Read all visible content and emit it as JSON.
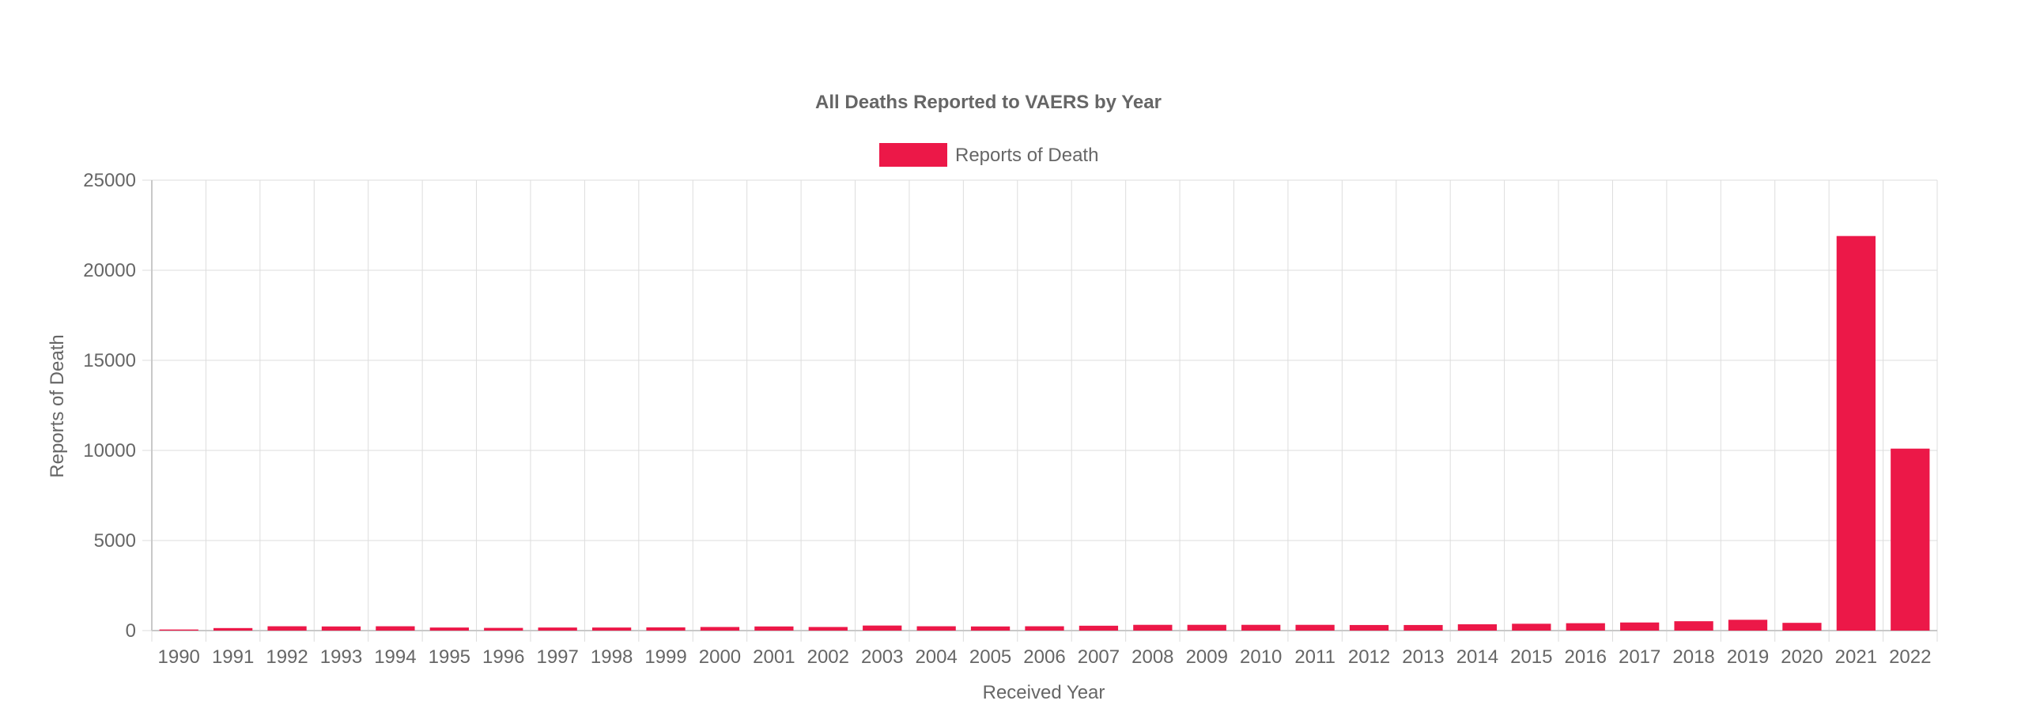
{
  "chart_data": {
    "type": "bar",
    "title": "All Deaths Reported to VAERS by Year",
    "xlabel": "Received Year",
    "ylabel": "Reports of Death",
    "ylim": [
      0,
      25000
    ],
    "yticks": [
      0,
      5000,
      10000,
      15000,
      20000,
      25000
    ],
    "grid": true,
    "legend_position": "top-center",
    "categories": [
      "1990",
      "1991",
      "1992",
      "1993",
      "1994",
      "1995",
      "1996",
      "1997",
      "1998",
      "1999",
      "2000",
      "2001",
      "2002",
      "2003",
      "2004",
      "2005",
      "2006",
      "2007",
      "2008",
      "2009",
      "2010",
      "2011",
      "2012",
      "2013",
      "2014",
      "2015",
      "2016",
      "2017",
      "2018",
      "2019",
      "2020",
      "2021",
      "2022"
    ],
    "series": [
      {
        "name": "Reports of Death",
        "color": "#EC1848",
        "values": [
          60,
          140,
          240,
          230,
          240,
          170,
          150,
          170,
          170,
          180,
          200,
          230,
          200,
          280,
          240,
          230,
          240,
          270,
          320,
          320,
          320,
          320,
          310,
          310,
          350,
          380,
          410,
          450,
          520,
          600,
          430,
          21900,
          10100
        ]
      }
    ]
  }
}
